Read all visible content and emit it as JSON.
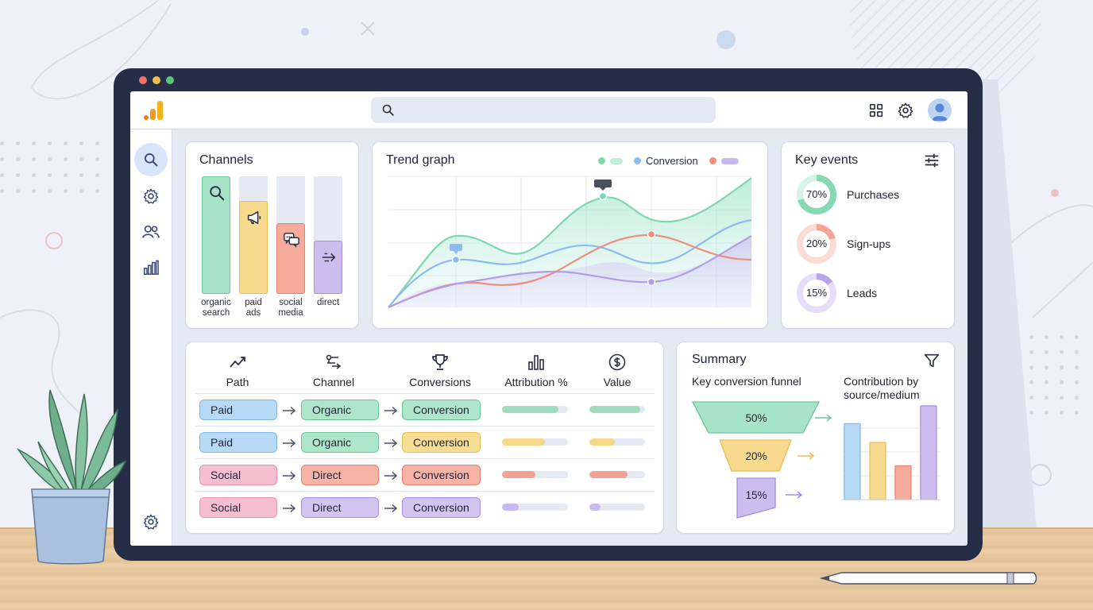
{
  "topbar": {
    "search_placeholder": ""
  },
  "channels": {
    "title": "Channels",
    "items": [
      {
        "label": "organic\nsearch",
        "level": 1.0,
        "color": "#a6e3c7",
        "border": "#6cc59b",
        "icon": "search-icon"
      },
      {
        "label": "paid\nads",
        "level": 0.79,
        "color": "#f7da8e",
        "border": "#e8bd52",
        "icon": "megaphone-icon"
      },
      {
        "label": "social\nmedia",
        "level": 0.6,
        "color": "#f6aa9c",
        "border": "#e68170",
        "icon": "chat-bubbles-icon"
      },
      {
        "label": "direct",
        "level": 0.45,
        "color": "#cdbdef",
        "border": "#a68de0",
        "icon": "arrows-right-icon"
      }
    ]
  },
  "trend": {
    "title": "Trend graph",
    "legend_label": "Conversion",
    "colors": {
      "green": "#7ed8ad",
      "blue": "#8cbcee",
      "red": "#ee8e7c",
      "purple": "#b39ee6"
    }
  },
  "key_events": {
    "title": "Key events",
    "items": [
      {
        "pct_label": "70%",
        "value": 0.7,
        "label": "Purchases",
        "color": "#86d9b1",
        "track": "#d7f3e6"
      },
      {
        "pct_label": "20%",
        "value": 0.2,
        "label": "Sign-ups",
        "color": "#f3a495",
        "track": "#fbdcd5"
      },
      {
        "pct_label": "15%",
        "value": 0.15,
        "label": "Leads",
        "color": "#b9a4ea",
        "track": "#e6def8"
      }
    ]
  },
  "paths": {
    "headers": [
      {
        "label": "Path",
        "icon": "trend-up-icon"
      },
      {
        "label": "Channel",
        "icon": "channel-icon"
      },
      {
        "label": "Conversions",
        "icon": "trophy-icon"
      },
      {
        "label": "Attribution %",
        "icon": "bar-chart-icon"
      },
      {
        "label": "Value",
        "icon": "dollar-icon"
      }
    ],
    "rows": [
      {
        "path": "Paid",
        "channel": "Organic",
        "conversion": "Conversion",
        "attribution": 0.85,
        "value": 0.92,
        "bar_color": "#9fdcc0"
      },
      {
        "path": "Paid",
        "channel": "Organic",
        "conversion": "Conversion",
        "attribution": 0.65,
        "value": 0.45,
        "bar_color": "#f5d78a"
      },
      {
        "path": "Social",
        "channel": "Direct",
        "conversion": "Conversion",
        "attribution": 0.5,
        "value": 0.68,
        "bar_color": "#f2a294"
      },
      {
        "path": "Social",
        "channel": "Direct",
        "conversion": "Conversion",
        "attribution": 0.25,
        "value": 0.2,
        "bar_color": "#c9b9ee"
      }
    ],
    "chip_colors": {
      "Paid": [
        "#b7d9f6",
        "#7fb5e6"
      ],
      "Social": [
        "#f6bfd0",
        "#e892ac"
      ],
      "Organic": [
        "#aee6cc",
        "#6cc59b"
      ],
      "Direct": [
        "#f6b3a6",
        "#e68170"
      ],
      "Conversion_row": [
        [
          "#aee6cc",
          "#6cc59b"
        ],
        [
          "#f8dd95",
          "#e8bd52"
        ],
        [
          "#f6b3a6",
          "#e68170"
        ],
        [
          "#d3c5f1",
          "#a68de0"
        ]
      ],
      "Channel_row": [
        [
          "#aee6cc",
          "#6cc59b"
        ],
        [
          "#aee6cc",
          "#6cc59b"
        ],
        [
          "#f6b3a6",
          "#e68170"
        ],
        [
          "#d3c5f1",
          "#a68de0"
        ]
      ]
    }
  },
  "summary": {
    "title": "Summary",
    "funnel_title": "Key conversion funnel",
    "contrib_title": "Contribution by\nsource/medium",
    "funnel": [
      {
        "label": "50%",
        "color": "#a6e3c7",
        "border": "#6cc59b"
      },
      {
        "label": "20%",
        "color": "#f7da8e",
        "border": "#e8bd52"
      },
      {
        "label": "15%",
        "color": "#cdbdef",
        "border": "#a68de0"
      }
    ],
    "contribution": [
      {
        "value": 0.81,
        "color": "#b7d9f6",
        "border": "#7fb5e6"
      },
      {
        "value": 0.61,
        "color": "#f7da8e",
        "border": "#e8bd52"
      },
      {
        "value": 0.36,
        "color": "#f6aa9c",
        "border": "#e68170"
      },
      {
        "value": 1.0,
        "color": "#cdbdef",
        "border": "#a68de0"
      }
    ]
  }
}
